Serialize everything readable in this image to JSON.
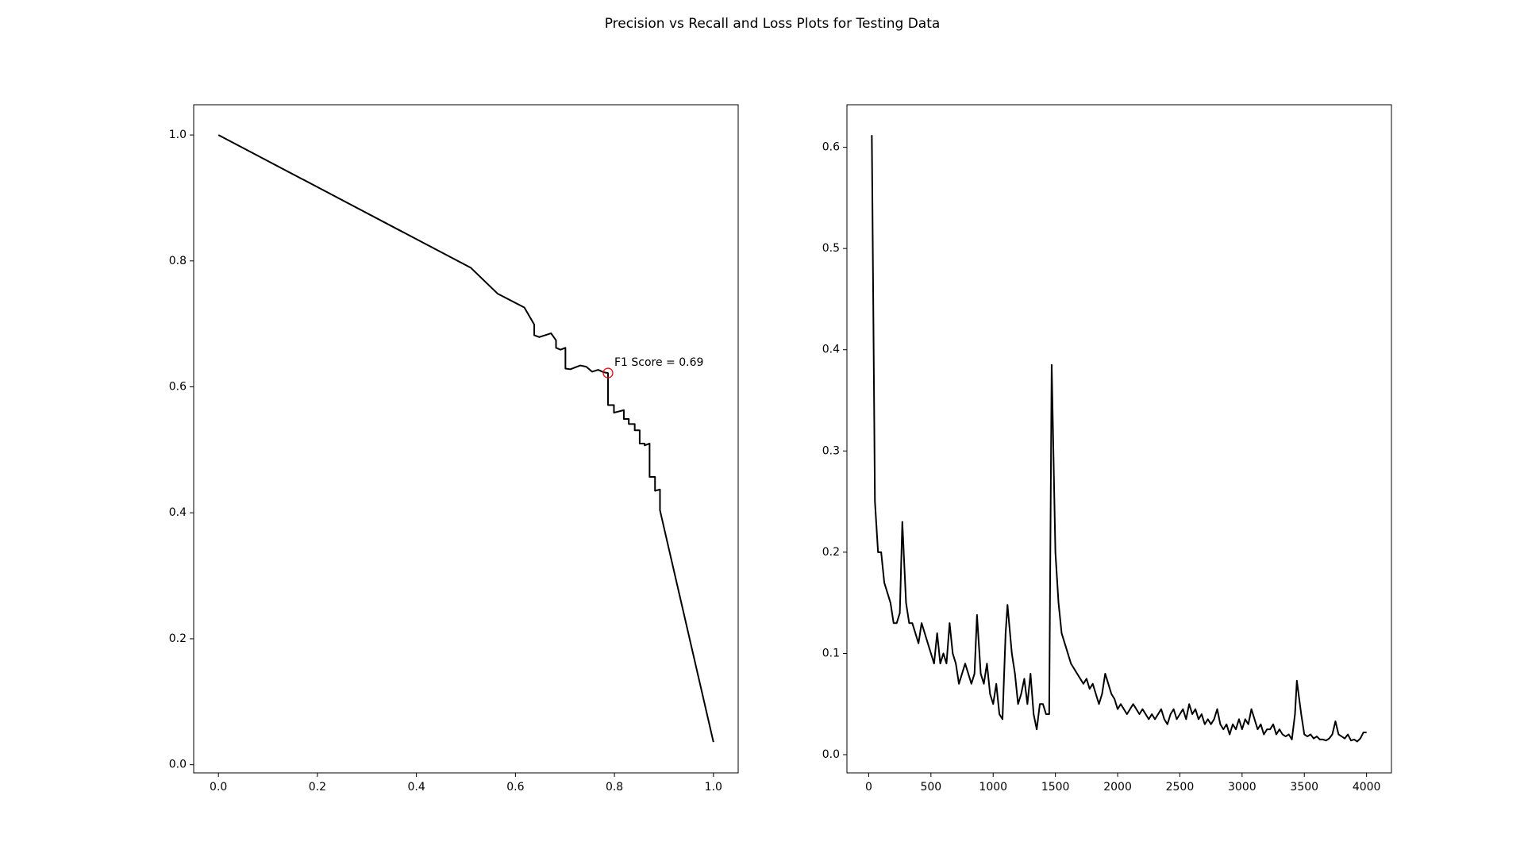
{
  "title": "Precision vs Recall and Loss Plots for Testing Data",
  "chart_data": [
    {
      "type": "line",
      "color": "#000000",
      "x": [
        0,
        0.51,
        0.564,
        0.618,
        0.638,
        0.638,
        0.648,
        0.672,
        0.682,
        0.682,
        0.691,
        0.701,
        0.701,
        0.711,
        0.731,
        0.743,
        0.755,
        0.767,
        0.779,
        0.787,
        0.787,
        0.799,
        0.799,
        0.819,
        0.819,
        0.829,
        0.829,
        0.841,
        0.841,
        0.851,
        0.851,
        0.861,
        0.861,
        0.871,
        0.871,
        0.882,
        0.882,
        0.892,
        0.892,
        1.0
      ],
      "values": [
        1.0,
        0.789,
        0.748,
        0.726,
        0.699,
        0.682,
        0.679,
        0.685,
        0.674,
        0.662,
        0.659,
        0.662,
        0.629,
        0.628,
        0.634,
        0.632,
        0.624,
        0.627,
        0.623,
        0.622,
        0.571,
        0.571,
        0.559,
        0.563,
        0.549,
        0.549,
        0.541,
        0.541,
        0.531,
        0.531,
        0.51,
        0.51,
        0.507,
        0.51,
        0.457,
        0.457,
        0.435,
        0.437,
        0.404,
        0.036
      ],
      "xlim": [
        -0.05,
        1.05
      ],
      "xticks": [
        {
          "value": 0,
          "label": "0.0"
        },
        0.2,
        0.4,
        0.6,
        0.8,
        {
          "value": 1,
          "label": "1.0"
        }
      ],
      "ylim": [
        -0.013,
        1.048
      ],
      "yticks": [
        {
          "value": 0,
          "label": "0.0"
        },
        0.2,
        0.4,
        0.6,
        0.8,
        {
          "value": 1,
          "label": "1.0"
        }
      ],
      "annotation": {
        "text": "F1 Score = 0.69",
        "x": 0.787,
        "y": 0.622,
        "color": "#ff0000"
      }
    },
    {
      "type": "line",
      "color": "#000000",
      "x": [
        25,
        50,
        75,
        100,
        125,
        150,
        175,
        200,
        225,
        250,
        270,
        300,
        325,
        350,
        375,
        400,
        425,
        450,
        475,
        500,
        525,
        550,
        575,
        600,
        625,
        650,
        675,
        700,
        725,
        750,
        775,
        800,
        825,
        850,
        870,
        900,
        925,
        950,
        975,
        1000,
        1025,
        1050,
        1075,
        1100,
        1115,
        1150,
        1175,
        1200,
        1225,
        1250,
        1275,
        1300,
        1325,
        1350,
        1375,
        1400,
        1425,
        1450,
        1470,
        1500,
        1525,
        1550,
        1575,
        1600,
        1625,
        1650,
        1675,
        1700,
        1725,
        1750,
        1775,
        1800,
        1825,
        1850,
        1875,
        1900,
        1925,
        1950,
        1975,
        2000,
        2025,
        2050,
        2075,
        2100,
        2125,
        2150,
        2175,
        2200,
        2225,
        2250,
        2275,
        2300,
        2325,
        2350,
        2375,
        2400,
        2425,
        2450,
        2475,
        2500,
        2525,
        2550,
        2575,
        2600,
        2625,
        2650,
        2675,
        2700,
        2725,
        2750,
        2775,
        2800,
        2825,
        2850,
        2875,
        2900,
        2925,
        2950,
        2975,
        3000,
        3025,
        3050,
        3075,
        3100,
        3125,
        3150,
        3175,
        3200,
        3225,
        3250,
        3275,
        3300,
        3325,
        3350,
        3375,
        3400,
        3425,
        3440,
        3475,
        3500,
        3525,
        3550,
        3575,
        3600,
        3625,
        3650,
        3675,
        3700,
        3725,
        3750,
        3775,
        3800,
        3825,
        3850,
        3875,
        3900,
        3925,
        3950,
        3975,
        4000
      ],
      "values": [
        0.612,
        0.25,
        0.2,
        0.2,
        0.17,
        0.16,
        0.15,
        0.13,
        0.13,
        0.14,
        0.23,
        0.15,
        0.13,
        0.13,
        0.12,
        0.11,
        0.13,
        0.12,
        0.11,
        0.1,
        0.09,
        0.12,
        0.09,
        0.1,
        0.09,
        0.13,
        0.1,
        0.09,
        0.07,
        0.08,
        0.09,
        0.08,
        0.07,
        0.08,
        0.138,
        0.08,
        0.07,
        0.09,
        0.06,
        0.05,
        0.07,
        0.04,
        0.035,
        0.12,
        0.148,
        0.1,
        0.08,
        0.05,
        0.06,
        0.075,
        0.05,
        0.08,
        0.04,
        0.025,
        0.05,
        0.05,
        0.04,
        0.04,
        0.385,
        0.2,
        0.15,
        0.12,
        0.11,
        0.1,
        0.09,
        0.085,
        0.08,
        0.075,
        0.07,
        0.075,
        0.065,
        0.07,
        0.06,
        0.05,
        0.06,
        0.08,
        0.07,
        0.06,
        0.055,
        0.045,
        0.05,
        0.045,
        0.04,
        0.045,
        0.05,
        0.045,
        0.04,
        0.045,
        0.04,
        0.035,
        0.04,
        0.035,
        0.04,
        0.045,
        0.035,
        0.03,
        0.04,
        0.045,
        0.035,
        0.04,
        0.045,
        0.035,
        0.05,
        0.04,
        0.045,
        0.035,
        0.04,
        0.03,
        0.035,
        0.03,
        0.035,
        0.045,
        0.03,
        0.025,
        0.03,
        0.02,
        0.03,
        0.025,
        0.035,
        0.025,
        0.035,
        0.03,
        0.045,
        0.035,
        0.025,
        0.03,
        0.02,
        0.025,
        0.025,
        0.03,
        0.02,
        0.025,
        0.02,
        0.018,
        0.02,
        0.015,
        0.04,
        0.073,
        0.04,
        0.02,
        0.018,
        0.02,
        0.016,
        0.018,
        0.015,
        0.015,
        0.014,
        0.016,
        0.02,
        0.033,
        0.02,
        0.018,
        0.016,
        0.02,
        0.014,
        0.015,
        0.013,
        0.016,
        0.022,
        0.022
      ],
      "xlim": [
        -175,
        4200
      ],
      "xticks": [
        0,
        500,
        1000,
        1500,
        2000,
        2500,
        3000,
        3500,
        4000
      ],
      "ylim": [
        -0.018,
        0.642
      ],
      "yticks": [
        {
          "value": 0,
          "label": "0.0"
        },
        0.1,
        0.2,
        0.3,
        0.4,
        0.5,
        0.6
      ]
    }
  ]
}
